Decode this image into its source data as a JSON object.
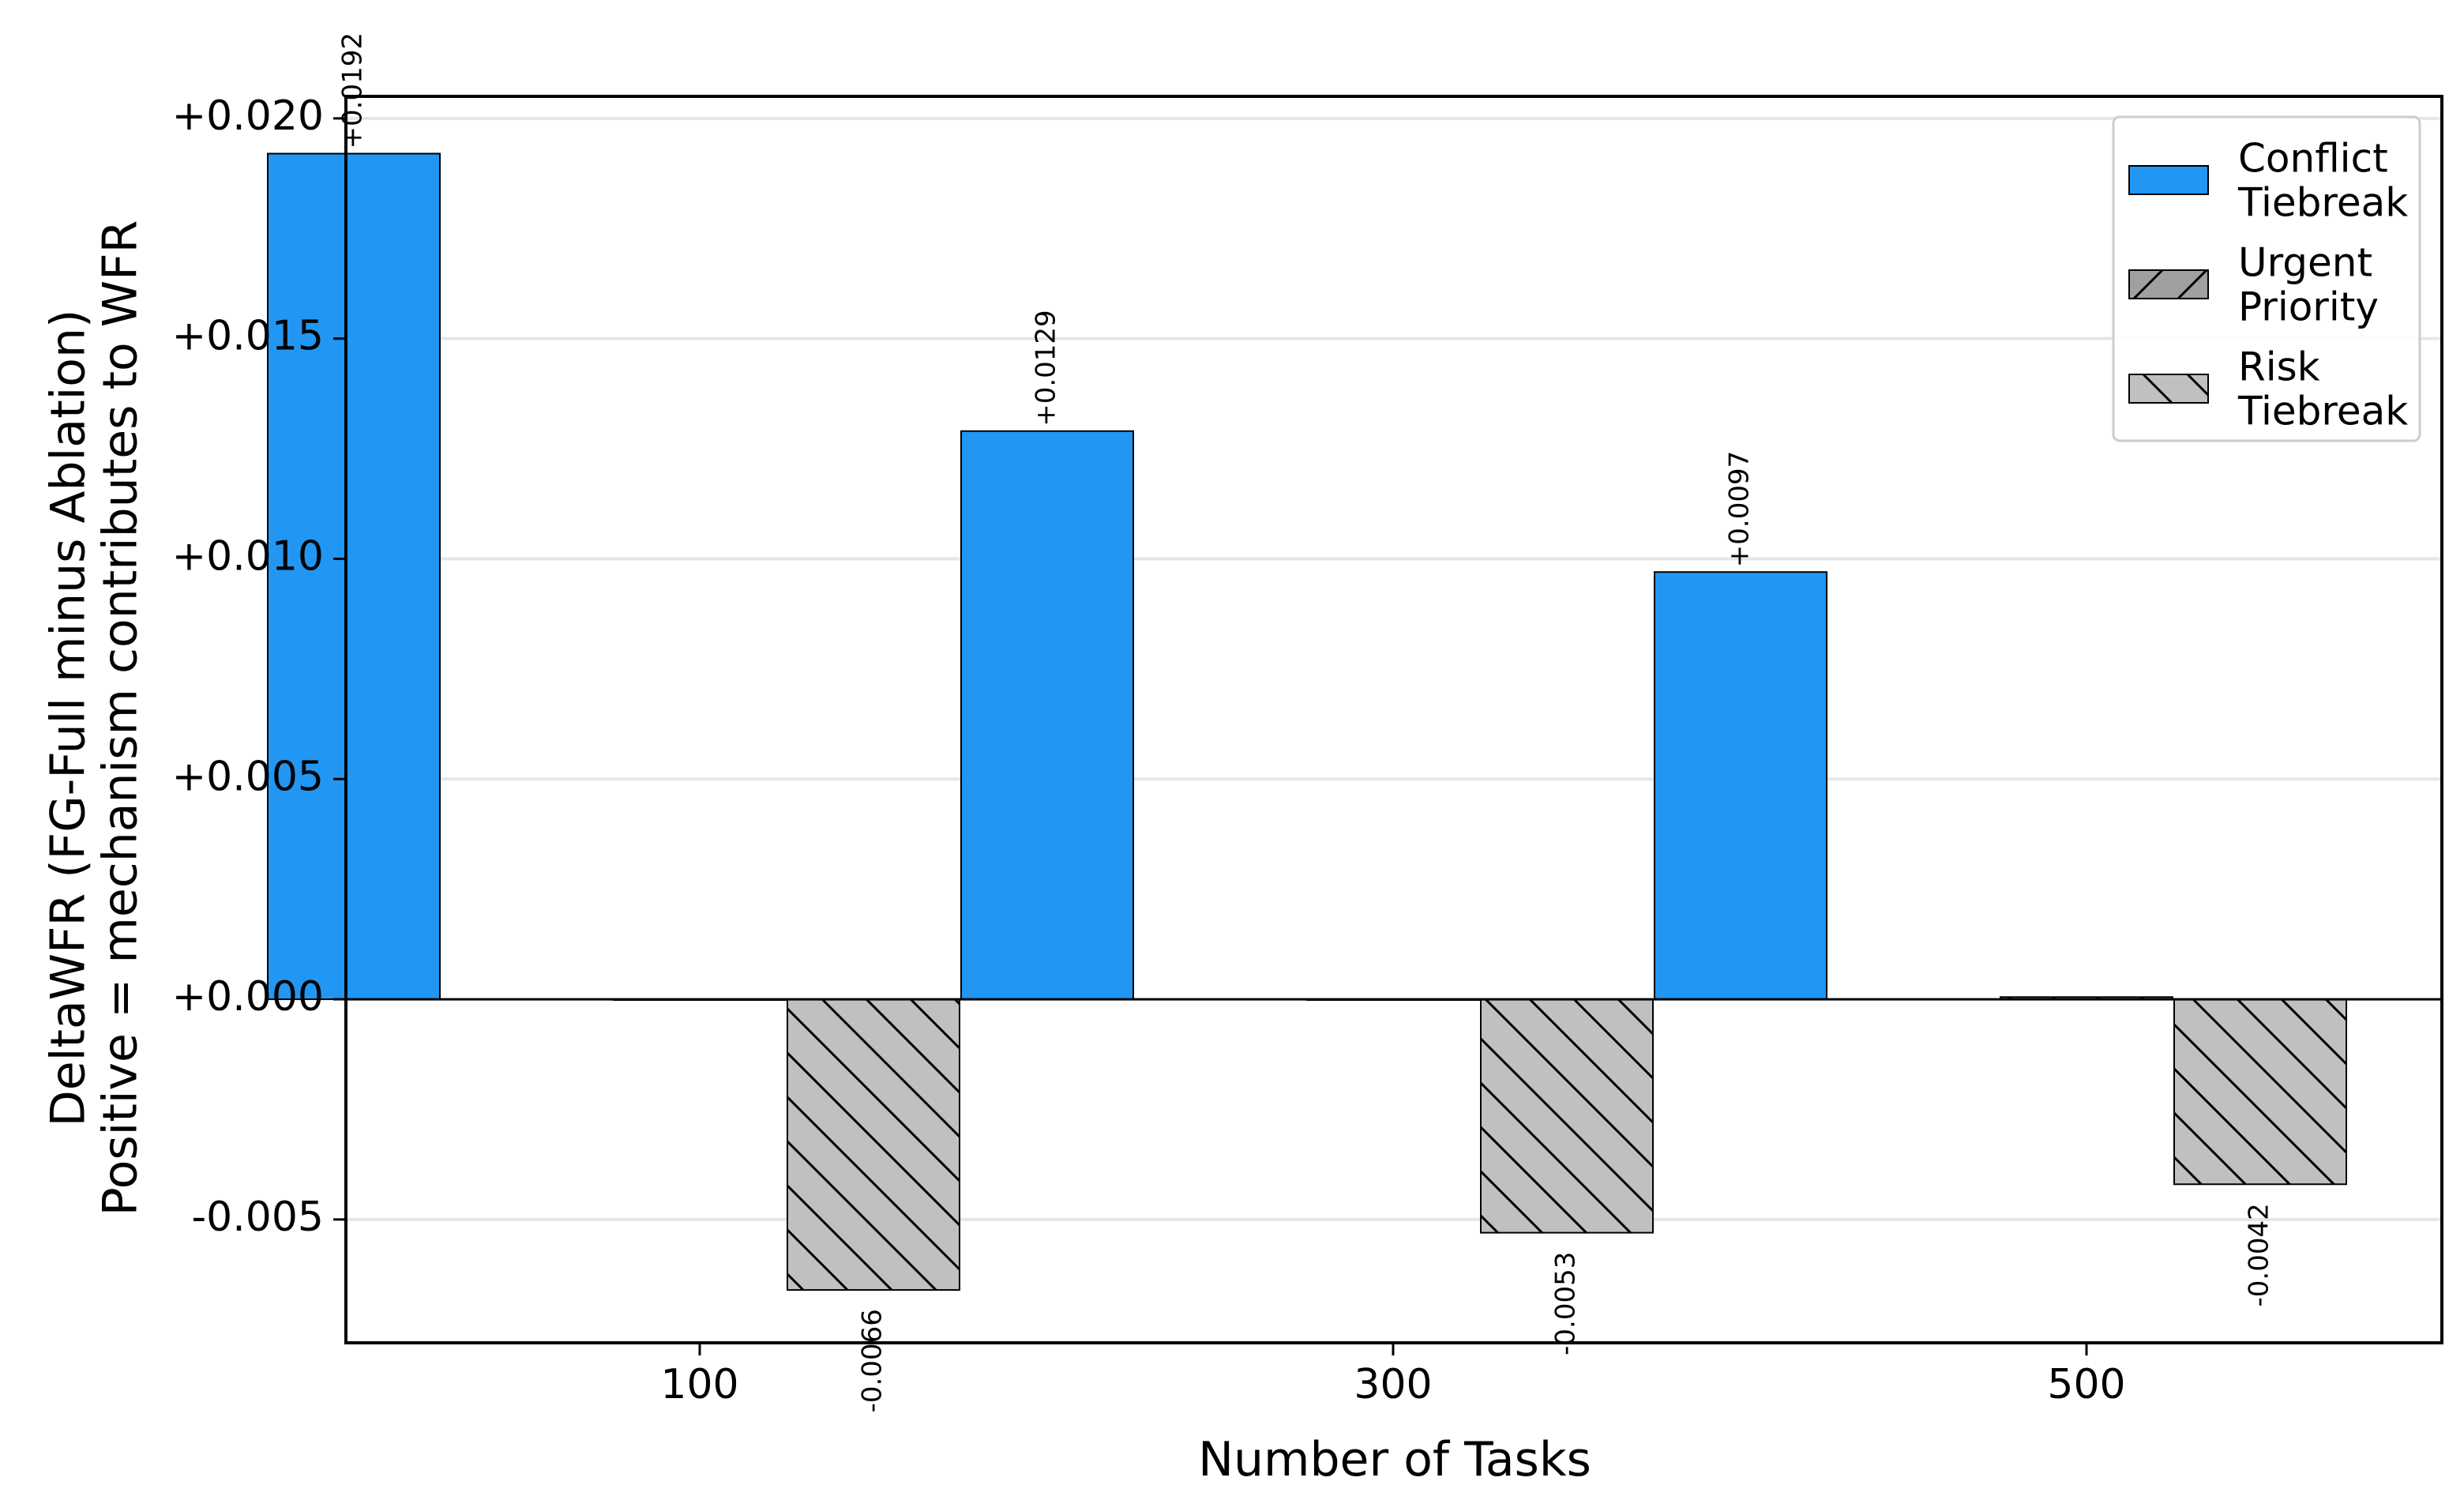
{
  "colors": {
    "conflict": "#2196f3",
    "gray_urgent": "#a0a0a0",
    "gray_risk": "#c0c0c0",
    "grid": "#e6e6e6",
    "axis": "#000000"
  },
  "chart_data": {
    "type": "bar",
    "title": "",
    "xlabel": "Number of Tasks",
    "ylabel_lines": [
      "DeltaWFR (FG-Full minus Ablation)",
      "Positive = mechanism contributes to WFR"
    ],
    "categories": [
      "100",
      "300",
      "500"
    ],
    "ylim": [
      -0.0078,
      0.0205
    ],
    "yticks": [
      -0.005,
      0.0,
      0.005,
      0.01,
      0.015,
      0.02
    ],
    "ytick_labels": [
      "-0.005",
      "+0.000",
      "+0.005",
      "+0.010",
      "+0.015",
      "+0.020"
    ],
    "grid": "horizontal",
    "legend_position": "top-right",
    "series": [
      {
        "name_lines": [
          "Conflict",
          "Tiebreak"
        ],
        "values": [
          0.0192,
          0.0129,
          0.0097
        ],
        "labels": [
          "+0.0192",
          "+0.0129",
          "+0.0097"
        ],
        "hatch": "none"
      },
      {
        "name_lines": [
          "Urgent",
          "Priority"
        ],
        "values": [
          0.0,
          0.0,
          5e-05
        ],
        "labels": [
          "",
          "",
          ""
        ],
        "hatch": "forward"
      },
      {
        "name_lines": [
          "Risk",
          "Tiebreak"
        ],
        "values": [
          -0.0066,
          -0.0053,
          -0.0042
        ],
        "labels": [
          "-0.0066",
          "-0.0053",
          "-0.0042"
        ],
        "hatch": "back"
      }
    ]
  }
}
